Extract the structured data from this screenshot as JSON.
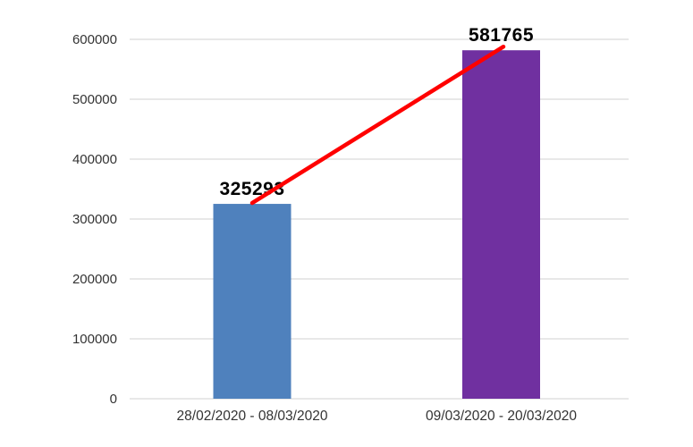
{
  "chart_data": {
    "type": "bar",
    "title": "",
    "xlabel": "",
    "ylabel": "",
    "categories": [
      "28/02/2020 - 08/03/2020",
      "09/03/2020 - 20/03/2020"
    ],
    "values": [
      325293,
      581765
    ],
    "data_labels": [
      "325293",
      "581765"
    ],
    "series_colors": [
      "#4f81bd",
      "#7030a0"
    ],
    "ylim": [
      0,
      600000
    ],
    "ytick_step": 100000,
    "ytick_labels": [
      "0",
      "100000",
      "200000",
      "300000",
      "400000",
      "500000",
      "600000"
    ],
    "grid": true,
    "gridline_color": "#d9d9d9",
    "axis_text_color": "#333333",
    "data_label_color": "#000000",
    "background": "#ffffff",
    "legend": "none",
    "trend_line": {
      "description": "straight red line from top of bar 1 to top of bar 2",
      "color": "#ff0000",
      "from_value": 325293,
      "to_value": 581765
    }
  }
}
